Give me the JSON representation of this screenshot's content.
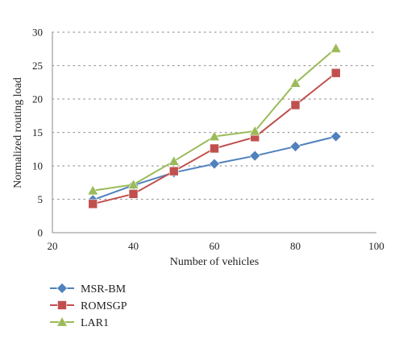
{
  "chart_data": {
    "type": "line",
    "title": "",
    "xlabel": "Number of vehicles",
    "ylabel": "Normalized routing load",
    "xlim": [
      20,
      100
    ],
    "ylim": [
      0,
      30
    ],
    "xticks": [
      "20",
      "40",
      "60",
      "80",
      "100"
    ],
    "yticks": [
      "0",
      "5",
      "10",
      "15",
      "20",
      "25",
      "30"
    ],
    "grid": "horizontal dotted",
    "legend_position": "bottom-left",
    "x": [
      30,
      40,
      50,
      60,
      70,
      80,
      90
    ],
    "series": [
      {
        "name": "MSR-BM",
        "marker": "diamond",
        "color": "#4f81bd",
        "values": [
          4.9,
          7.1,
          9.0,
          10.3,
          11.5,
          12.9,
          14.4
        ]
      },
      {
        "name": "ROMSGP",
        "marker": "square",
        "color": "#c0504d",
        "values": [
          4.3,
          5.8,
          9.2,
          12.6,
          14.3,
          19.1,
          23.9
        ]
      },
      {
        "name": "LAR1",
        "marker": "triangle",
        "color": "#9bbb59",
        "values": [
          6.3,
          7.2,
          10.7,
          14.4,
          15.2,
          22.4,
          27.6
        ]
      }
    ]
  }
}
